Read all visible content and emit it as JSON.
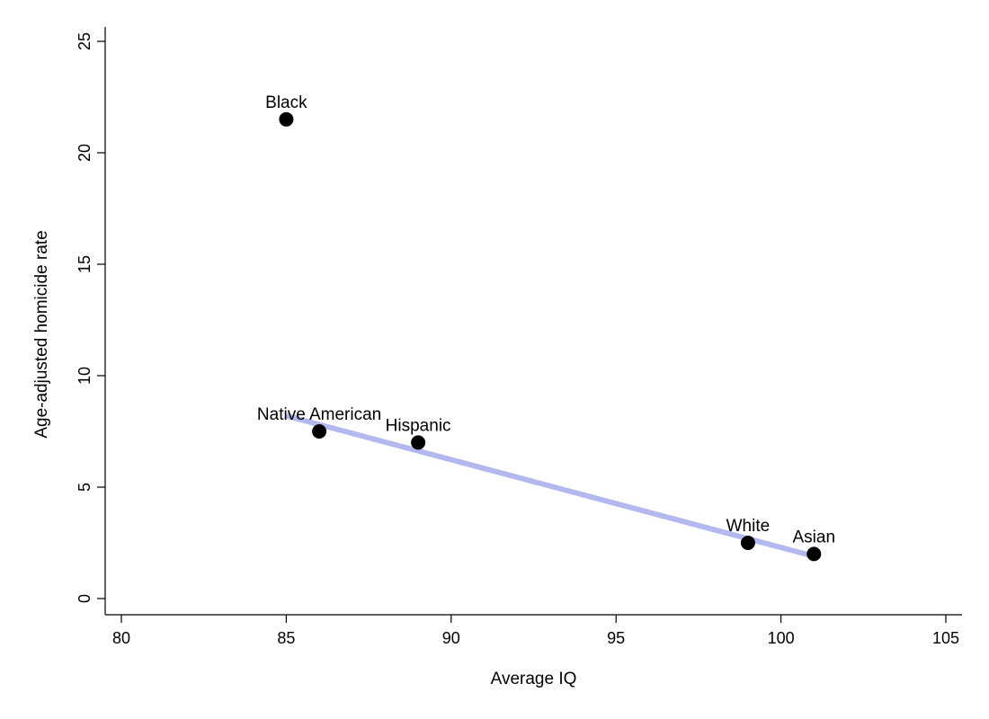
{
  "chart_data": {
    "type": "scatter",
    "xlabel": "Average IQ",
    "ylabel": "Age-adjusted homicide rate",
    "xlim": [
      80,
      105
    ],
    "ylim": [
      0,
      25
    ],
    "x_ticks": [
      80,
      85,
      90,
      95,
      100,
      105
    ],
    "y_ticks": [
      0,
      5,
      10,
      15,
      20,
      25
    ],
    "grid": false,
    "points": [
      {
        "label": "Black",
        "x": 85,
        "y": 21.5
      },
      {
        "label": "Native American",
        "x": 86,
        "y": 7.5
      },
      {
        "label": "Hispanic",
        "x": 89,
        "y": 7.0
      },
      {
        "label": "White",
        "x": 99,
        "y": 2.5
      },
      {
        "label": "Asian",
        "x": 101,
        "y": 2.0
      }
    ],
    "fit_line": {
      "x": [
        85,
        101
      ],
      "y": [
        8.2,
        1.9
      ],
      "color": "#b3b8ee"
    },
    "point_color": "#000000"
  }
}
